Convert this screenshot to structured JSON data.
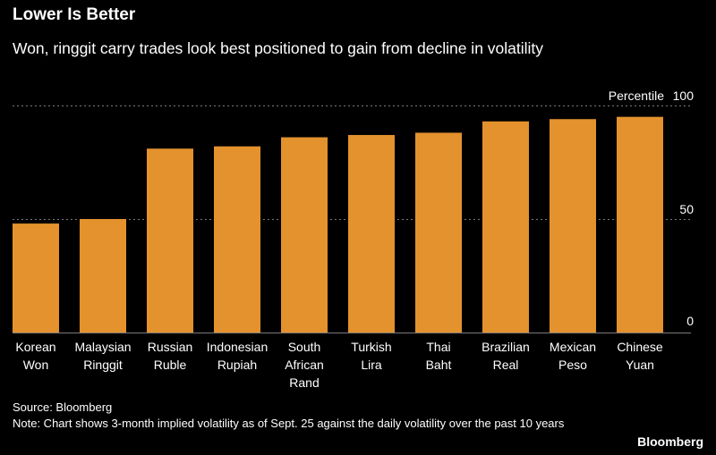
{
  "header": {
    "title": "Lower Is Better",
    "subtitle": "Won, ringgit carry trades look best positioned to gain from decline in volatility"
  },
  "footer": {
    "source": "Source: Bloomberg",
    "note": "Note: Chart shows 3-month implied volatility as of Sept. 25 against the daily volatility over the past 10 years",
    "brand": "Bloomberg"
  },
  "colors": {
    "bar": "#E3922D",
    "grid": "#7a7a7a",
    "text": "#ffffff",
    "background": "#000000"
  },
  "chart_data": {
    "type": "bar",
    "title": "Lower Is Better",
    "subtitle": "Won, ringgit carry trades look best positioned to gain from decline in volatility",
    "categories": [
      [
        "Korean",
        "Won"
      ],
      [
        "Malaysian",
        "Ringgit"
      ],
      [
        "Russian",
        "Ruble"
      ],
      [
        "Indonesian",
        "Rupiah"
      ],
      [
        "South",
        "African",
        "Rand"
      ],
      [
        "Turkish",
        "Lira"
      ],
      [
        "Thai",
        "Baht"
      ],
      [
        "Brazilian",
        "Real"
      ],
      [
        "Mexican",
        "Peso"
      ],
      [
        "Chinese",
        "Yuan"
      ]
    ],
    "values": [
      48,
      50,
      81,
      82,
      86,
      87,
      88,
      93,
      94,
      95
    ],
    "ylabel": "Percentile",
    "ylim": [
      0,
      100
    ],
    "yticks": [
      0,
      50,
      100
    ],
    "grid": true
  }
}
